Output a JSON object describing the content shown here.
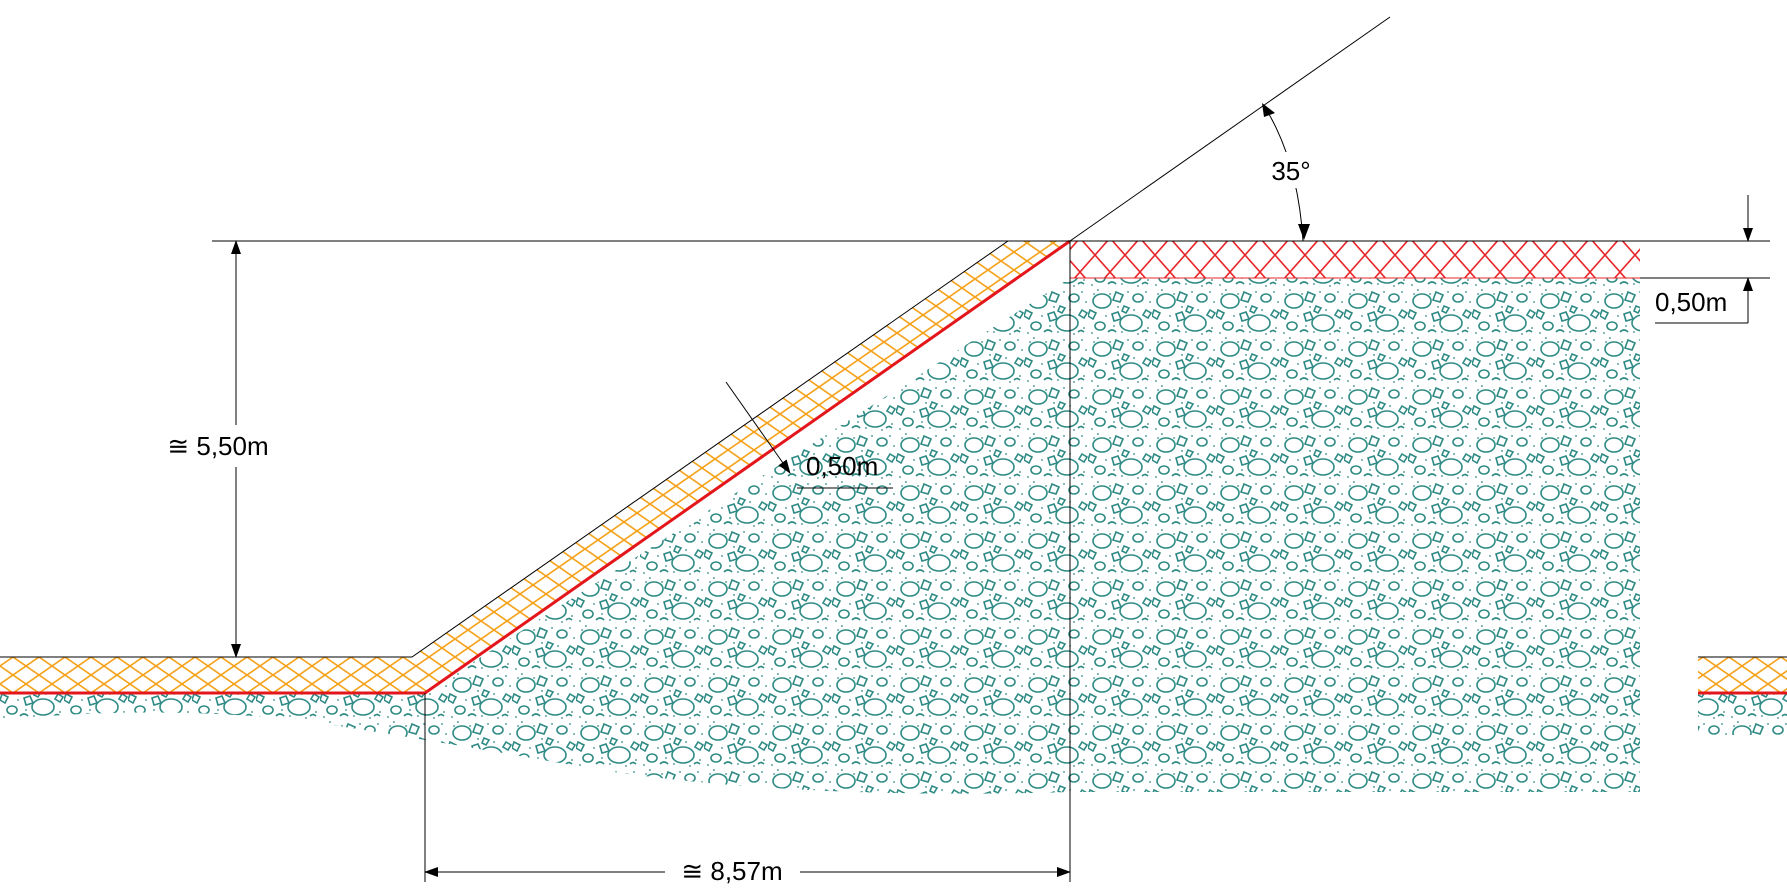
{
  "diagram": {
    "slope_angle": "35°",
    "slope_layer_thickness": "0,50m",
    "top_layer_thickness": "0,50m",
    "height": "≅ 5,50m",
    "horizontal_run": "≅ 8,57m"
  },
  "colors": {
    "gravel_fill": "#2e8a84",
    "orange_hatch": "#f5a21a",
    "red_hatch": "#e8262a",
    "red_line": "#e3161c",
    "dimension_line": "#000000"
  }
}
